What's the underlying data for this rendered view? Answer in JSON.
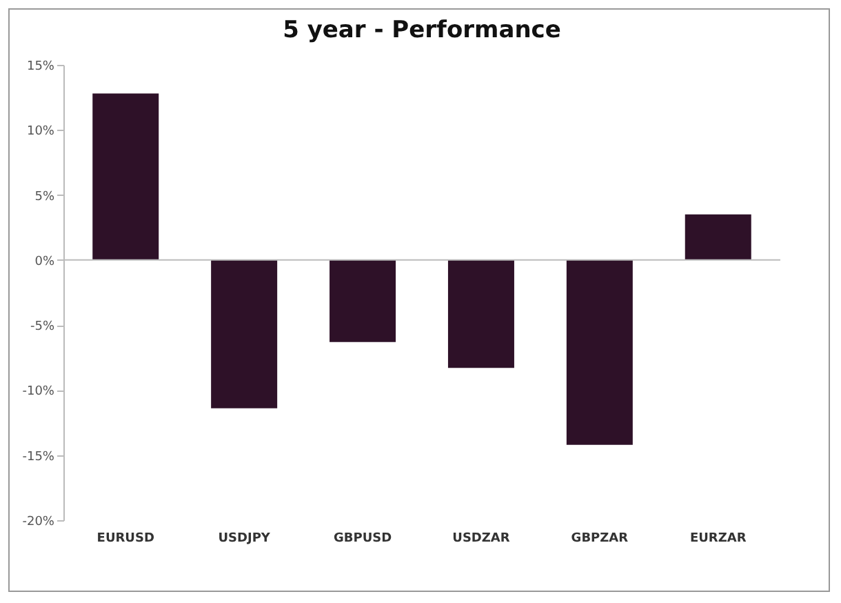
{
  "chart_data": {
    "type": "bar",
    "title": "5 year - Performance",
    "categories": [
      "EURUSD",
      "USDJPY",
      "GBPUSD",
      "USDZAR",
      "GBPZAR",
      "EURZAR"
    ],
    "values": [
      12.8,
      -11.4,
      -6.3,
      -8.3,
      -14.2,
      3.5
    ],
    "color": "#2e1128",
    "ylim": [
      -20,
      15
    ],
    "yticks": [
      {
        "value": 15,
        "label": "15%"
      },
      {
        "value": 10,
        "label": "10%"
      },
      {
        "value": 5,
        "label": "5%"
      },
      {
        "value": 0,
        "label": "0%"
      },
      {
        "value": -5,
        "label": "-5%"
      },
      {
        "value": -10,
        "label": "-10%"
      },
      {
        "value": -15,
        "label": "-15%"
      },
      {
        "value": -20,
        "label": "-20%"
      }
    ],
    "grid": false,
    "ref_lines": [
      {
        "axis": "y",
        "value": 0,
        "color": "#bbbbbb"
      }
    ]
  }
}
